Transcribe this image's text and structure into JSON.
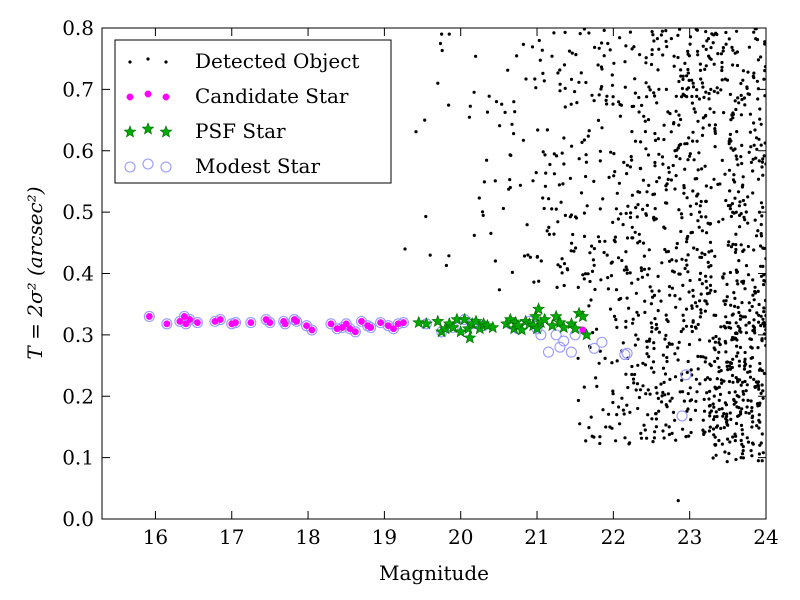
{
  "chart_data": {
    "type": "scatter",
    "xlabel": "Magnitude",
    "ylabel": "T = 2σ² (arcsec²)",
    "xlim": [
      15.3,
      24.0
    ],
    "ylim": [
      0.0,
      0.8
    ],
    "xticks": [
      16,
      17,
      18,
      19,
      20,
      21,
      22,
      23,
      24
    ],
    "yticks": [
      0.0,
      0.1,
      0.2,
      0.3,
      0.4,
      0.5,
      0.6,
      0.7,
      0.8
    ],
    "grid": false,
    "legend_position": "top-left",
    "colors": {
      "detected": "#000000",
      "candidate": "#ff00ff",
      "psf": "#00aa00",
      "modest": "#9999ff"
    },
    "series": [
      {
        "name": "Detected Object",
        "marker": "dot",
        "generated": {
          "x_range": [
            19.2,
            24.0
          ],
          "y_range": [
            0.02,
            0.8
          ],
          "approx_count": 1300,
          "density_increases_with_magnitude": true,
          "seed": 7
        },
        "x": [
          19.27,
          19.6,
          19.7,
          19.75,
          19.85,
          21.9,
          22.85,
          23.9,
          23.95
        ],
        "y": [
          0.44,
          0.43,
          0.71,
          0.79,
          0.79,
          0.15,
          0.03,
          0.095,
          0.095
        ]
      },
      {
        "name": "Candidate Star",
        "marker": "circle",
        "x": [
          15.92,
          16.15,
          16.32,
          16.38,
          16.4,
          16.45,
          16.55,
          16.78,
          16.85,
          17.0,
          17.05,
          17.25,
          17.45,
          17.5,
          17.68,
          17.7,
          17.82,
          17.85,
          17.98,
          18.05,
          18.3,
          18.38,
          18.45,
          18.5,
          18.55,
          18.62,
          18.7,
          18.78,
          18.82,
          18.95,
          19.05,
          19.12,
          19.18,
          19.25,
          21.6
        ],
        "y": [
          0.33,
          0.318,
          0.322,
          0.33,
          0.318,
          0.325,
          0.32,
          0.322,
          0.325,
          0.318,
          0.32,
          0.32,
          0.325,
          0.32,
          0.322,
          0.318,
          0.325,
          0.322,
          0.315,
          0.308,
          0.318,
          0.31,
          0.312,
          0.318,
          0.31,
          0.305,
          0.322,
          0.315,
          0.312,
          0.32,
          0.315,
          0.31,
          0.318,
          0.32,
          0.308
        ]
      },
      {
        "name": "PSF Star",
        "marker": "star",
        "x": [
          19.45,
          19.55,
          19.7,
          19.75,
          19.8,
          19.85,
          19.9,
          19.95,
          20.0,
          20.05,
          20.1,
          20.12,
          20.15,
          20.2,
          20.25,
          20.3,
          20.35,
          20.42,
          20.6,
          20.65,
          20.7,
          20.72,
          20.75,
          20.8,
          20.85,
          20.9,
          20.95,
          20.98,
          21.0,
          21.02,
          21.05,
          21.1,
          21.2,
          21.25,
          21.3,
          21.35,
          21.45,
          21.5,
          21.55,
          21.6,
          21.65
        ],
        "y": [
          0.32,
          0.318,
          0.322,
          0.305,
          0.31,
          0.318,
          0.312,
          0.325,
          0.305,
          0.325,
          0.31,
          0.295,
          0.318,
          0.322,
          0.31,
          0.318,
          0.315,
          0.312,
          0.318,
          0.325,
          0.31,
          0.32,
          0.315,
          0.308,
          0.322,
          0.318,
          0.315,
          0.33,
          0.31,
          0.342,
          0.32,
          0.325,
          0.315,
          0.33,
          0.32,
          0.312,
          0.318,
          0.31,
          0.335,
          0.33,
          0.3
        ]
      },
      {
        "name": "Modest Star",
        "marker": "open-circle",
        "x": [
          15.92,
          16.15,
          16.32,
          16.38,
          16.4,
          16.45,
          16.55,
          16.78,
          16.85,
          17.0,
          17.05,
          17.25,
          17.45,
          17.5,
          17.68,
          17.7,
          17.82,
          17.85,
          17.98,
          18.05,
          18.3,
          18.38,
          18.45,
          18.5,
          18.55,
          18.62,
          18.7,
          18.78,
          18.82,
          18.95,
          19.05,
          19.12,
          19.18,
          19.25,
          19.55,
          19.75,
          19.9,
          20.05,
          20.15,
          20.3,
          20.65,
          20.75,
          20.9,
          21.0,
          21.05,
          21.15,
          21.25,
          21.3,
          21.35,
          21.45,
          21.5,
          21.75,
          21.85,
          22.15,
          22.18,
          22.9,
          22.95
        ],
        "y": [
          0.33,
          0.318,
          0.322,
          0.33,
          0.318,
          0.325,
          0.32,
          0.322,
          0.325,
          0.318,
          0.32,
          0.32,
          0.325,
          0.32,
          0.322,
          0.318,
          0.325,
          0.322,
          0.315,
          0.308,
          0.318,
          0.31,
          0.312,
          0.318,
          0.31,
          0.305,
          0.322,
          0.315,
          0.312,
          0.32,
          0.315,
          0.31,
          0.318,
          0.32,
          0.318,
          0.305,
          0.312,
          0.325,
          0.318,
          0.315,
          0.318,
          0.31,
          0.322,
          0.31,
          0.3,
          0.272,
          0.3,
          0.28,
          0.29,
          0.272,
          0.3,
          0.278,
          0.288,
          0.268,
          0.27,
          0.168,
          0.235
        ]
      }
    ]
  }
}
